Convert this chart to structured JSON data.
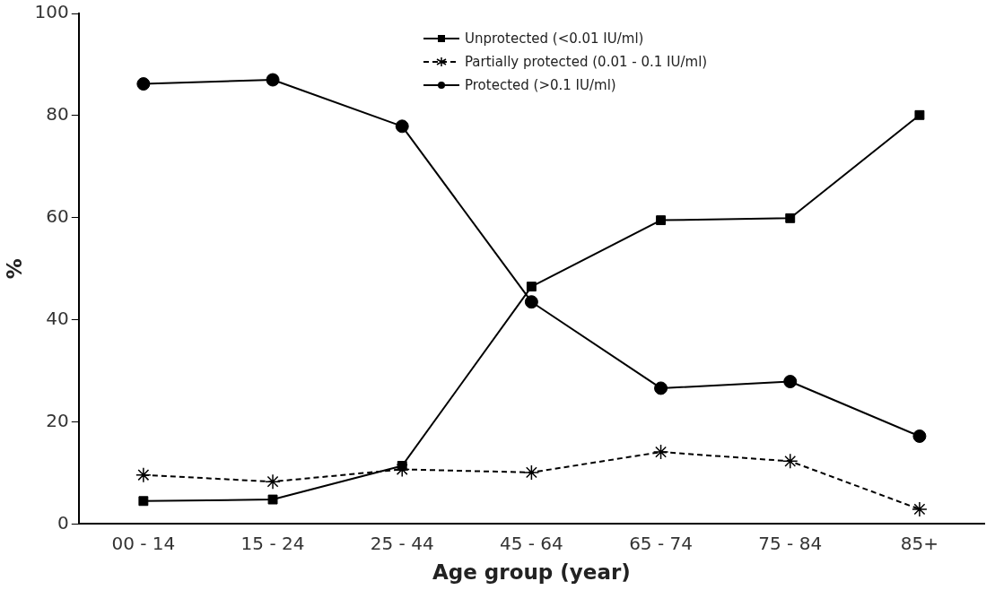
{
  "chart_data": {
    "type": "line",
    "xlabel": "Age group (year)",
    "ylabel": "%",
    "categories": [
      "00 - 14",
      "15 - 24",
      "25 - 44",
      "45 - 64",
      "65 - 74",
      "75 - 84",
      "85+"
    ],
    "series": [
      {
        "name": "Unprotected (<0.01 IU/ml)",
        "color": "#000000",
        "marker": "square",
        "line_style": "solid",
        "values": [
          4.5,
          4.8,
          11.4,
          46.5,
          59.5,
          59.9,
          80.1
        ]
      },
      {
        "name": "Partially protected (0.01 - 0.1 IU/ml)",
        "color": "#000000",
        "marker": "cross",
        "line_style": "dashed",
        "values": [
          9.6,
          8.3,
          10.7,
          10.1,
          14.1,
          12.3,
          2.9
        ]
      },
      {
        "name": "Protected (>0.1 IU/ml)",
        "color": "#000000",
        "marker": "circle",
        "line_style": "solid",
        "values": [
          86.2,
          87,
          77.9,
          43.5,
          26.6,
          27.9,
          17.2
        ]
      }
    ],
    "ylim": [
      0,
      100
    ],
    "yticks": [
      0,
      20,
      40,
      60,
      80,
      100
    ],
    "grid": false,
    "legend": "top"
  }
}
